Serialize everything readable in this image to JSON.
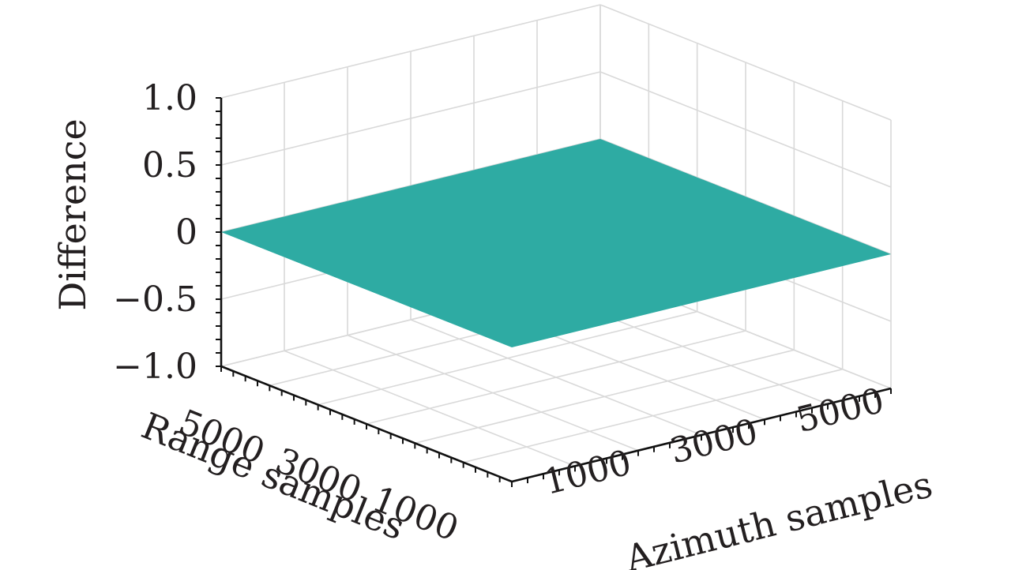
{
  "chart_data": {
    "type": "surface",
    "title": "",
    "xlabel": "Azimuth samples",
    "ylabel": "Range samples",
    "zlabel": "Difference",
    "xlim": [
      0,
      6000
    ],
    "ylim": [
      0,
      6000
    ],
    "zlim": [
      -1.0,
      1.0
    ],
    "x_ticks": [
      "1000",
      "3000",
      "5000"
    ],
    "y_ticks": [
      "1000",
      "3000",
      "5000"
    ],
    "z_ticks": [
      "1.0",
      "0.5",
      "0",
      "−0.5",
      "−1.0"
    ],
    "x_tick_values": [
      1000,
      3000,
      5000
    ],
    "y_tick_values": [
      1000,
      3000,
      5000
    ],
    "z_tick_values": [
      1.0,
      0.5,
      0,
      -0.5,
      -1.0
    ],
    "surface_value": 0,
    "surface_color": "#2eaba3",
    "grid": true
  }
}
